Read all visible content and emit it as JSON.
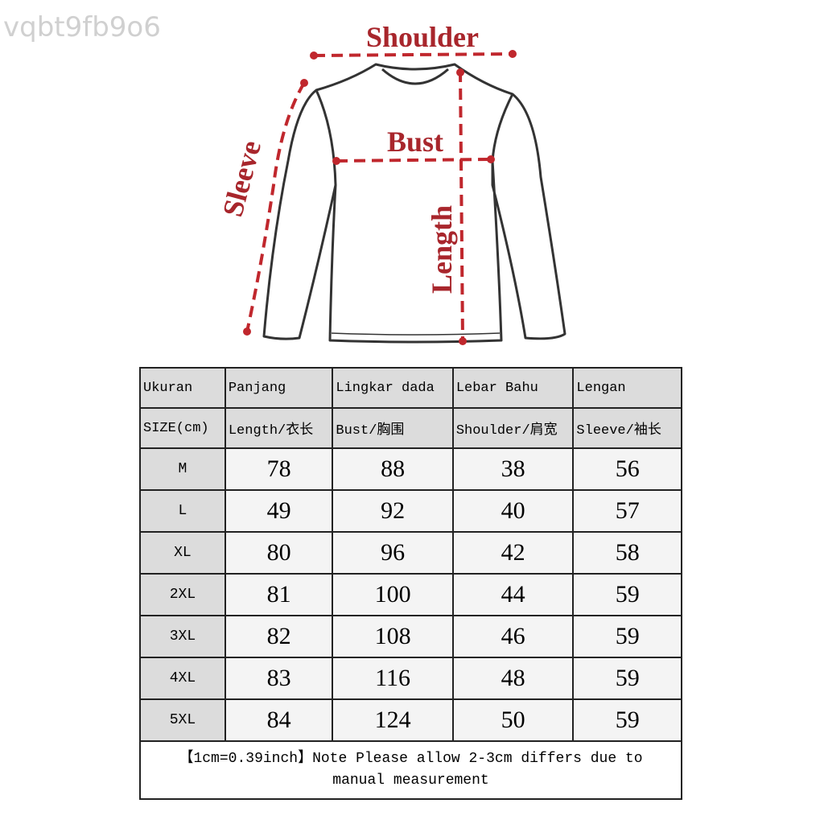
{
  "watermark": "vqbt9fb9o6",
  "diagram": {
    "labels": {
      "shoulder": "Shoulder",
      "bust": "Bust",
      "sleeve": "Sleeve",
      "length": "Length"
    },
    "accent_color": "#a8262c"
  },
  "table": {
    "header_row1": [
      "Ukuran",
      "Panjang",
      "Lingkar dada",
      "Lebar Bahu",
      "Lengan"
    ],
    "header_row2": [
      "SIZE(cm)",
      "Length/衣长",
      "Bust/胸围",
      "Shoulder/肩宽",
      "Sleeve/袖长"
    ],
    "rows": [
      [
        "M",
        "78",
        "88",
        "38",
        "56"
      ],
      [
        "L",
        "49",
        "92",
        "40",
        "57"
      ],
      [
        "XL",
        "80",
        "96",
        "42",
        "58"
      ],
      [
        "2XL",
        "81",
        "100",
        "44",
        "59"
      ],
      [
        "3XL",
        "82",
        "108",
        "46",
        "59"
      ],
      [
        "4XL",
        "83",
        "116",
        "48",
        "59"
      ],
      [
        "5XL",
        "84",
        "124",
        "50",
        "59"
      ]
    ],
    "note_line1": "【1cm=0.39inch】Note Please allow 2-3cm differs due to",
    "note_line2": "manual measurement"
  }
}
